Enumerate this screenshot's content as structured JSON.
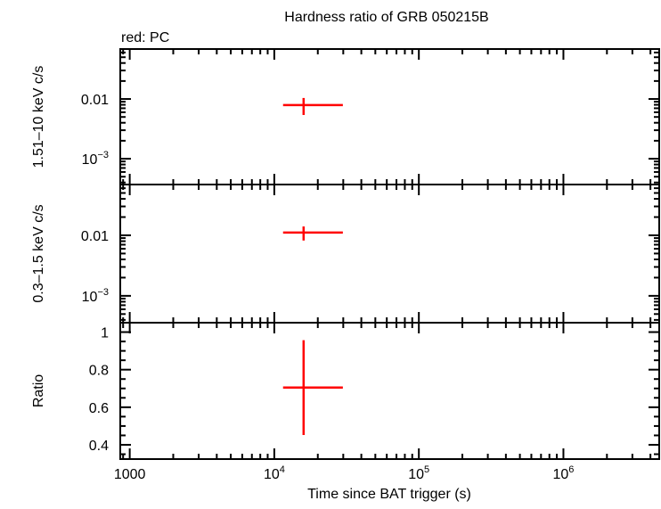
{
  "chart_data": {
    "type": "scatter",
    "title": "Hardness ratio of GRB 050215B",
    "legend_note": "red: PC",
    "xlabel": "Time since BAT trigger (s)",
    "xscale": "log",
    "xlim": [
      860,
      4600000
    ],
    "xticks": [
      {
        "value": 1000,
        "label": "1000"
      },
      {
        "value": 10000,
        "label": "10",
        "exp": "4"
      },
      {
        "value": 100000,
        "label": "10",
        "exp": "5"
      },
      {
        "value": 1000000,
        "label": "10",
        "exp": "6"
      }
    ],
    "series_color": "#ff0000",
    "panels": [
      {
        "ylabel": "1.51–10 keV c/s",
        "yscale": "log",
        "ylim": [
          0.00037,
          0.0686
        ],
        "yticks": [
          {
            "value": 0.01,
            "label": "0.01"
          },
          {
            "value": 0.001,
            "label": "10",
            "exp": "−3"
          }
        ],
        "points": [
          {
            "x": 15950,
            "xlo": 11500,
            "xhi": 29800,
            "y": 0.0079,
            "ylo": 0.0054,
            "yhi": 0.0104
          }
        ]
      },
      {
        "ylabel": "0.3–1.5 keV c/s",
        "yscale": "log",
        "ylim": [
          0.00036,
          0.069
        ],
        "yticks": [
          {
            "value": 0.01,
            "label": "0.01"
          },
          {
            "value": 0.001,
            "label": "10",
            "exp": "−3"
          }
        ],
        "points": [
          {
            "x": 15950,
            "xlo": 11500,
            "xhi": 29800,
            "y": 0.0111,
            "ylo": 0.0082,
            "yhi": 0.014
          }
        ]
      },
      {
        "ylabel": "Ratio",
        "yscale": "linear",
        "ylim": [
          0.324,
          1.05
        ],
        "yticks": [
          {
            "value": 1,
            "label": "1"
          },
          {
            "value": 0.8,
            "label": "0.8"
          },
          {
            "value": 0.6,
            "label": "0.6"
          },
          {
            "value": 0.4,
            "label": "0.4"
          }
        ],
        "minor_step": 0.05,
        "points": [
          {
            "x": 15950,
            "xlo": 11500,
            "xhi": 29800,
            "y": 0.705,
            "ylo": 0.452,
            "yhi": 0.957
          }
        ]
      }
    ]
  }
}
